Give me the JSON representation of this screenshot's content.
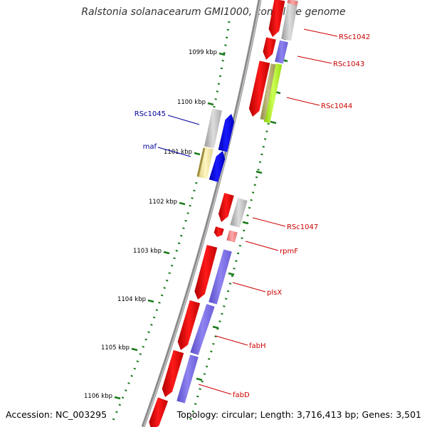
{
  "title": "Ralstonia solanacearum GMI1000, complete genome",
  "footer": {
    "accession": "Accession: NC_003295",
    "summary": "Topology: circular; Length: 3,716,413 bp; Genes: 3,501"
  },
  "ruler_ticks": [
    "1099 kbp",
    "1100 kbp",
    "1101 kbp",
    "1102 kbp",
    "1103 kbp",
    "1104 kbp",
    "1105 kbp",
    "1106 kbp"
  ],
  "gene_labels": [
    {
      "name": "RSc1042",
      "strand": "forward",
      "color": "#cc0000"
    },
    {
      "name": "RSc1043",
      "strand": "forward",
      "color": "#cc0000"
    },
    {
      "name": "RSc1044",
      "strand": "forward",
      "color": "#cc0000"
    },
    {
      "name": "RSc1045",
      "strand": "reverse",
      "color": "#000099"
    },
    {
      "name": "maf",
      "strand": "reverse",
      "color": "#000099"
    },
    {
      "name": "RSc1047",
      "strand": "forward",
      "color": "#cc0000"
    },
    {
      "name": "rpmF",
      "strand": "forward",
      "color": "#cc0000"
    },
    {
      "name": "plsX",
      "strand": "forward",
      "color": "#cc0000"
    },
    {
      "name": "fabH",
      "strand": "forward",
      "color": "#cc0000"
    },
    {
      "name": "fabD",
      "strand": "forward",
      "color": "#cc0000"
    }
  ],
  "colors": {
    "gene_forward": "#ee0000",
    "gene_reverse": "#0000ee",
    "backbone": "#8a8a8a",
    "tick_green": "#1a7a1a",
    "cog_grey": "#b8b8b8",
    "cog_purple": "#7a6ee0",
    "cog_lime": "#aaee22",
    "cog_olive": "#b0aa66",
    "cog_yellow": "#f0e6a0",
    "cog_pink": "#f08080"
  }
}
